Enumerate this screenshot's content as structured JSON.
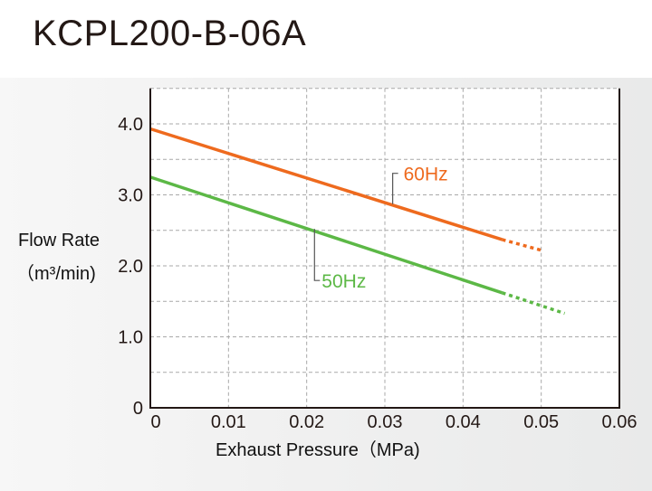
{
  "title": "KCPL200-B-06A",
  "chart_data": {
    "type": "line",
    "title": "KCPL200-B-06A",
    "xlabel": "Exhaust Pressure（MPa)",
    "ylabel_line1": "Flow Rate",
    "ylabel_line2": "（m³/min)",
    "xlim": [
      0,
      0.06
    ],
    "ylim": [
      0,
      4.5
    ],
    "grid": true,
    "x_ticks": [
      0,
      0.01,
      0.02,
      0.03,
      0.04,
      0.05,
      0.06
    ],
    "x_tick_labels": [
      "0",
      "0.01",
      "0.02",
      "0.03",
      "0.04",
      "0.05",
      "0.06"
    ],
    "y_ticks": [
      0,
      1.0,
      2.0,
      3.0,
      4.0
    ],
    "y_tick_labels": [
      "0",
      "1.0",
      "2.0",
      "3.0",
      "4.0"
    ],
    "y_minor_grid": [
      0.5,
      1.5,
      2.5,
      3.5
    ],
    "series": [
      {
        "name": "60Hz",
        "color": "#ee6a1e",
        "solid": {
          "x": [
            0,
            0.045
          ],
          "y": [
            3.93,
            2.37
          ]
        },
        "dotted": {
          "x": [
            0.045,
            0.05
          ],
          "y": [
            2.37,
            2.22
          ]
        },
        "label_anchor": {
          "x": 0.031,
          "y": 2.87
        }
      },
      {
        "name": "50Hz",
        "color": "#5cb846",
        "solid": {
          "x": [
            0,
            0.045
          ],
          "y": [
            3.25,
            1.62
          ]
        },
        "dotted": {
          "x": [
            0.045,
            0.053
          ],
          "y": [
            1.62,
            1.33
          ]
        },
        "label_anchor": {
          "x": 0.021,
          "y": 2.52
        }
      }
    ],
    "legend": "inline-labels"
  }
}
